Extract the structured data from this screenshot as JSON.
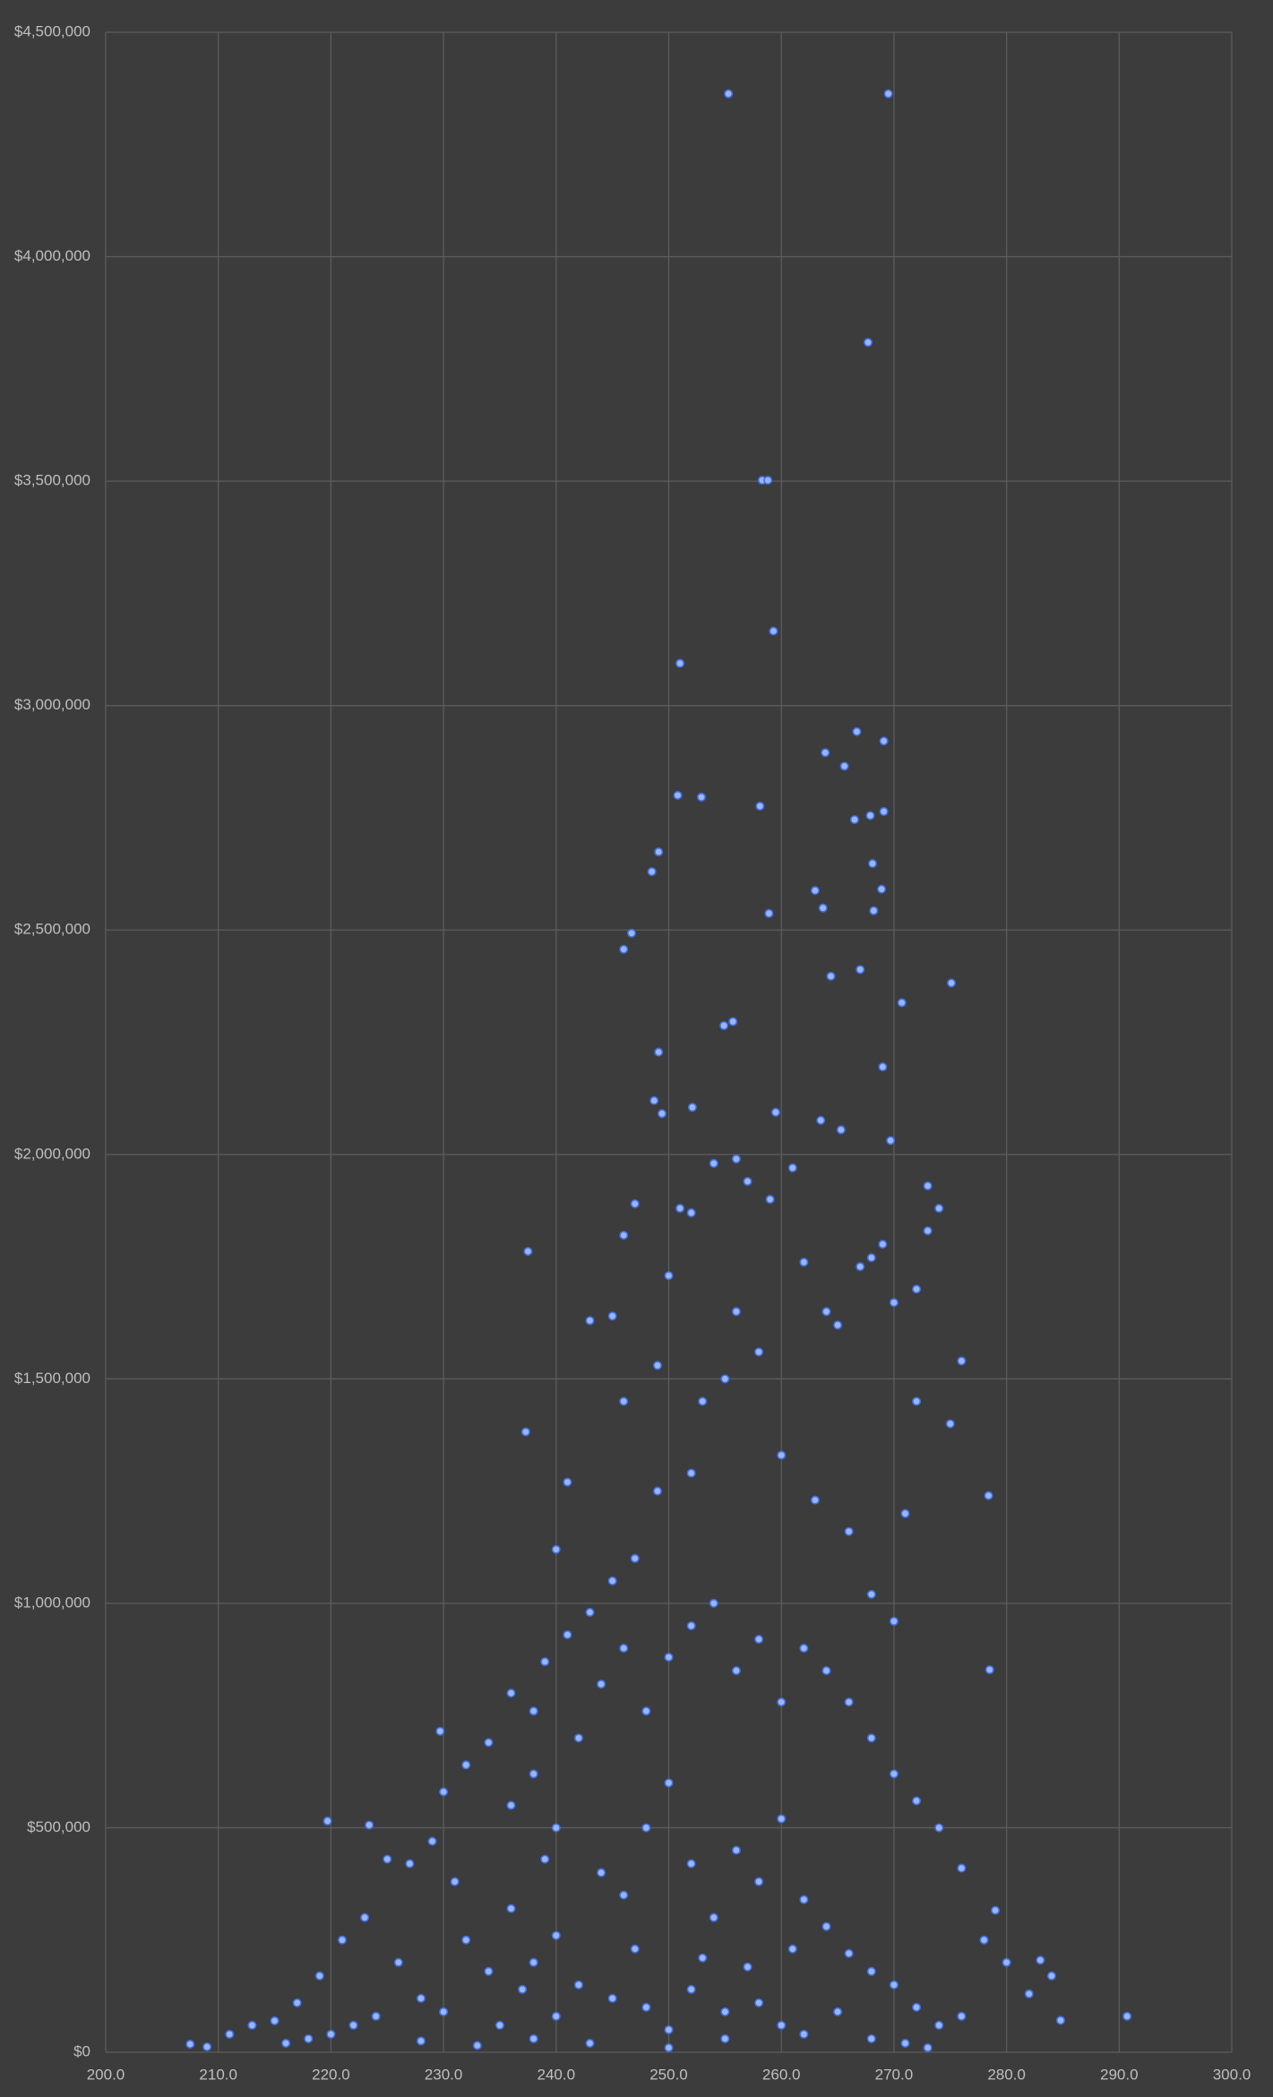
{
  "chart_data": {
    "type": "scatter",
    "color": "#9ab6f2",
    "grid": true,
    "xlim": [
      200,
      300
    ],
    "xticks": [
      {
        "value": 200,
        "label": "200.0"
      },
      {
        "value": 210,
        "label": "210.0"
      },
      {
        "value": 220,
        "label": "220.0"
      },
      {
        "value": 230,
        "label": "230.0"
      },
      {
        "value": 240,
        "label": "240.0"
      },
      {
        "value": 250,
        "label": "250.0"
      },
      {
        "value": 260,
        "label": "260.0"
      },
      {
        "value": 270,
        "label": "270.0"
      },
      {
        "value": 280,
        "label": "280.0"
      },
      {
        "value": 290,
        "label": "290.0"
      },
      {
        "value": 300,
        "label": "300.0"
      }
    ],
    "ylim": [
      0,
      4500000
    ],
    "yticks": [
      {
        "value": 0,
        "label": "$0"
      },
      {
        "value": 500000,
        "label": "$500,000"
      },
      {
        "value": 1000000,
        "label": "$1,000,000"
      },
      {
        "value": 1500000,
        "label": "$1,500,000"
      },
      {
        "value": 2000000,
        "label": "$2,000,000"
      },
      {
        "value": 2500000,
        "label": "$2,500,000"
      },
      {
        "value": 3000000,
        "label": "$3,000,000"
      },
      {
        "value": 3500000,
        "label": "$3,500,000"
      },
      {
        "value": 4000000,
        "label": "$4,000,000"
      },
      {
        "value": 4500000,
        "label": "$4,500,000"
      }
    ],
    "x": [
      255.3,
      269.5,
      267.7,
      258.3,
      258.8,
      259.3,
      251,
      250.8,
      252.9,
      266.7,
      269.1,
      263.9,
      265.6,
      258.1,
      269.1,
      267.9,
      266.5,
      249.1,
      248.5,
      268.1,
      263,
      268.9,
      263.7,
      268.2,
      258.9,
      246.7,
      246,
      267,
      264.4,
      275.1,
      270.7,
      255.7,
      254.9,
      249.1,
      269,
      248.7,
      252.1,
      249.4,
      259.5,
      263.5,
      265.3,
      269.7,
      237.5,
      237.3,
      219.7,
      223.4,
      229.7,
      290.7,
      284.8,
      283,
      278.4,
      278.5,
      279,
      207.5,
      209,
      240,
      241,
      243,
      245,
      246,
      247,
      246,
      249,
      250,
      251,
      252,
      254,
      256,
      257,
      259,
      261,
      262,
      264,
      265,
      267,
      268,
      269,
      270,
      272,
      273,
      273,
      274,
      276,
      275,
      272,
      271,
      270,
      268,
      266,
      263,
      260,
      258,
      256,
      255,
      253,
      252,
      249,
      247,
      245,
      243,
      241,
      239,
      238,
      236,
      234,
      232,
      230,
      229,
      227,
      225,
      223,
      221,
      219,
      217,
      215,
      213,
      211,
      236,
      238,
      240,
      242,
      244,
      246,
      248,
      250,
      252,
      254,
      256,
      258,
      260,
      262,
      264,
      266,
      268,
      270,
      272,
      274,
      276,
      278,
      280,
      282,
      284,
      244,
      246,
      248,
      250,
      252,
      254,
      256,
      258,
      260,
      262,
      264,
      266,
      268,
      270,
      272,
      274,
      276,
      232,
      234,
      236,
      238,
      240,
      242,
      228,
      226,
      224,
      222,
      220,
      218,
      216,
      230,
      235,
      240,
      245,
      248,
      250,
      252,
      255,
      258,
      260,
      262,
      265,
      268,
      271,
      273,
      243,
      238,
      233,
      228,
      250,
      255,
      247,
      253,
      257,
      261,
      237,
      231,
      239
    ],
    "values": [
      4363000,
      4363000,
      3809000,
      3502000,
      3502000,
      3166000,
      3094000,
      2800000,
      2796000,
      2942000,
      2921000,
      2895000,
      2865000,
      2776000,
      2764000,
      2755000,
      2746000,
      2674000,
      2630000,
      2648000,
      2588000,
      2591000,
      2549000,
      2543000,
      2537000,
      2493000,
      2457000,
      2412000,
      2397000,
      2382000,
      2338000,
      2296000,
      2287000,
      2228000,
      2195000,
      2120000,
      2105000,
      2091000,
      2094000,
      2076000,
      2055000,
      2031000,
      1784000,
      1382000,
      515000,
      506000,
      715000,
      80000,
      71000,
      205000,
      1240000,
      852000,
      316000,
      18000,
      12000,
      1120000,
      1270000,
      1630000,
      1640000,
      1450000,
      1890000,
      1820000,
      1530000,
      1730000,
      1880000,
      1870000,
      1980000,
      1990000,
      1940000,
      1900000,
      1970000,
      1760000,
      1650000,
      1620000,
      1750000,
      1770000,
      1800000,
      1670000,
      1700000,
      1930000,
      1830000,
      1880000,
      1540000,
      1400000,
      1450000,
      1200000,
      960000,
      1020000,
      1160000,
      1230000,
      1330000,
      1560000,
      1650000,
      1500000,
      1450000,
      1290000,
      1250000,
      1100000,
      1050000,
      980000,
      930000,
      870000,
      760000,
      800000,
      690000,
      640000,
      580000,
      470000,
      420000,
      430000,
      300000,
      250000,
      170000,
      110000,
      70000,
      60000,
      40000,
      550000,
      620000,
      500000,
      700000,
      820000,
      900000,
      760000,
      880000,
      950000,
      1000000,
      850000,
      920000,
      780000,
      900000,
      850000,
      780000,
      700000,
      620000,
      560000,
      500000,
      410000,
      250000,
      200000,
      130000,
      170000,
      400000,
      350000,
      500000,
      600000,
      420000,
      300000,
      450000,
      380000,
      520000,
      340000,
      280000,
      220000,
      180000,
      150000,
      100000,
      60000,
      80000,
      250000,
      180000,
      320000,
      200000,
      260000,
      150000,
      120000,
      200000,
      80000,
      60000,
      40000,
      30000,
      20000,
      90000,
      60000,
      80000,
      120000,
      100000,
      50000,
      140000,
      90000,
      110000,
      60000,
      40000,
      90000,
      30000,
      20000,
      10000,
      20000,
      30000,
      15000,
      25000,
      10000,
      30000,
      230000,
      210000,
      190000,
      230000,
      140000,
      380000,
      430000
    ]
  }
}
